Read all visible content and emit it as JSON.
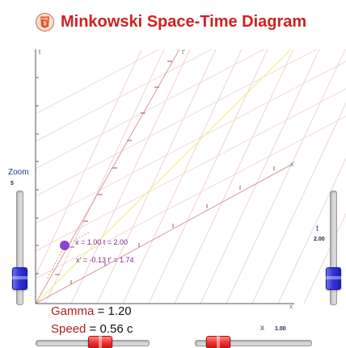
{
  "header": {
    "title": "Minkowski Space-Time Diagram",
    "logo_text": "HTML",
    "logo_number": "5"
  },
  "axes": {
    "t_label": "t",
    "x_label": "x",
    "tprime_label": "t'",
    "xprime_label": "x'"
  },
  "event": {
    "coords_line1": "x = 1.00  t = 2.00",
    "coords_line2": "x' = -0.13  t' = 1.74"
  },
  "controls": {
    "zoom": {
      "label": "Zoom",
      "value": "5"
    },
    "t": {
      "label": "t",
      "value": "2.00"
    },
    "x": {
      "label": "x",
      "value": "1.00"
    }
  },
  "readouts": {
    "gamma_label": "Gamma",
    "gamma_value": "= 1.20",
    "speed_label": "Speed",
    "speed_value": "= 0.56 c"
  },
  "colors": {
    "title": "#d12020",
    "primary_axes": "#555555",
    "boosted_axes": "#d98484",
    "grid": "#edd2d2",
    "light_cone": "#f2ef8f",
    "event": "#8844c7",
    "event_text": "#7a2d8d"
  }
}
